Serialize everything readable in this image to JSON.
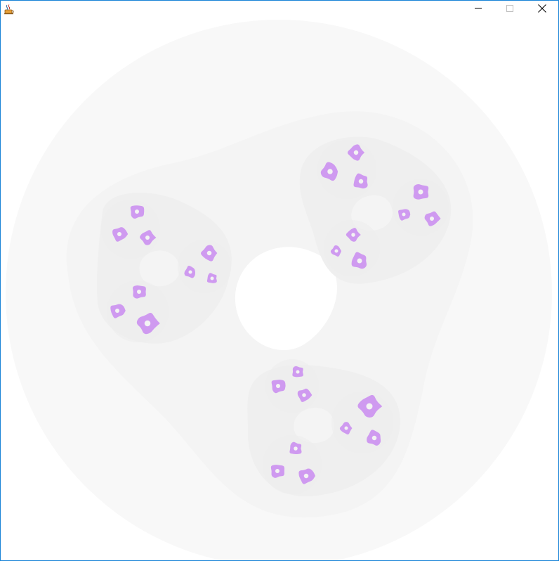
{
  "window": {
    "title": "",
    "app_icon": "java-coffee-cup-icon",
    "controls": {
      "minimize": "minimize-icon",
      "maximize": "maximize-icon",
      "close": "close-icon"
    }
  },
  "colors": {
    "frame_border": "#1883d7",
    "outer_disc": "#f8f8f8",
    "level1_region": "#f4f4f4",
    "level2_region": "#efefef",
    "blob_fill": "#cf9af0",
    "background": "#ffffff"
  }
}
